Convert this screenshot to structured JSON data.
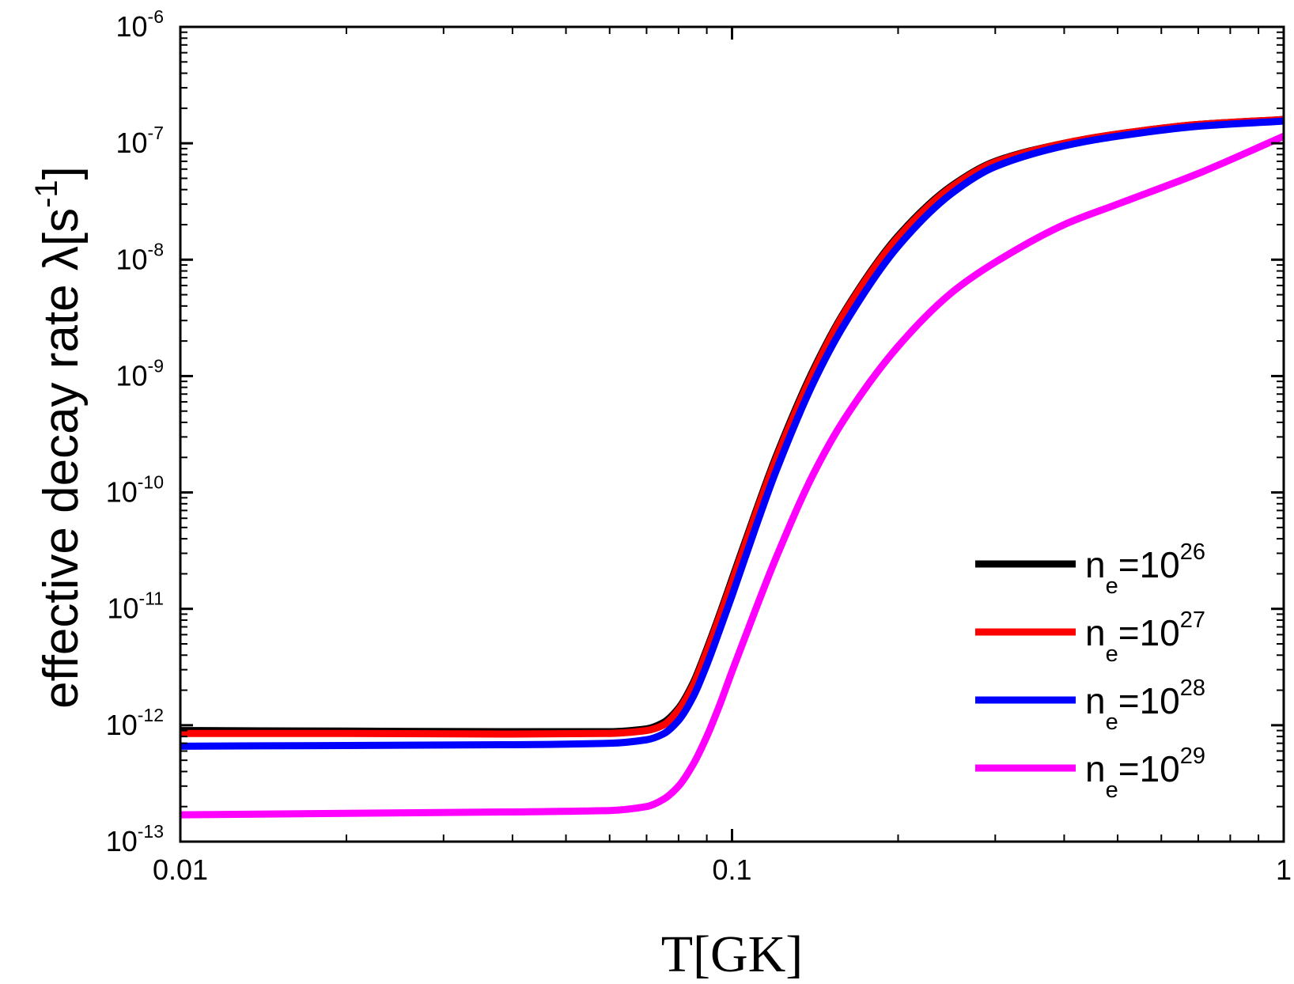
{
  "chart_data": {
    "type": "line",
    "title": "",
    "xlabel": "T[GK]",
    "ylabel": "effective decay rate λ[s⁻¹]",
    "ylabel_parts": {
      "main": "effective decay rate λ[s",
      "sup": "-1",
      "end": "]"
    },
    "x_scale": "log",
    "y_scale": "log",
    "xlim": [
      0.01,
      1
    ],
    "ylim": [
      1e-13,
      1e-06
    ],
    "x_ticks": [
      {
        "value": 0.01,
        "label": "0.01"
      },
      {
        "value": 0.1,
        "label": "0.1"
      },
      {
        "value": 1,
        "label": "1"
      }
    ],
    "y_ticks": [
      {
        "value": 1e-13,
        "base": "10",
        "exp": "-13"
      },
      {
        "value": 1e-12,
        "base": "10",
        "exp": "-12"
      },
      {
        "value": 1e-11,
        "base": "10",
        "exp": "-11"
      },
      {
        "value": 1e-10,
        "base": "10",
        "exp": "-10"
      },
      {
        "value": 1e-09,
        "base": "10",
        "exp": "-9"
      },
      {
        "value": 1e-08,
        "base": "10",
        "exp": "-8"
      },
      {
        "value": 1e-07,
        "base": "10",
        "exp": "-7"
      },
      {
        "value": 1e-06,
        "base": "10",
        "exp": "-6"
      }
    ],
    "grid": false,
    "legend_position": "bottom-right",
    "series": [
      {
        "name": "n_e=10^26",
        "legend": {
          "base": "n",
          "sub": "e",
          "mid": "=10",
          "sup": "26"
        },
        "color": "#000000",
        "x": [
          0.01,
          0.02,
          0.04,
          0.06,
          0.07,
          0.075,
          0.08,
          0.085,
          0.09,
          0.095,
          0.1,
          0.11,
          0.12,
          0.14,
          0.16,
          0.2,
          0.25,
          0.3,
          0.4,
          0.5,
          0.7,
          1.0
        ],
        "y": [
          9e-13,
          8.9e-13,
          8.8e-13,
          8.8e-13,
          9.3e-13,
          1.05e-12,
          1.4e-12,
          2.3e-12,
          4.5e-12,
          9e-12,
          1.8e-11,
          6.5e-11,
          2e-10,
          1.1e-09,
          3.6e-09,
          1.6e-08,
          4.3e-08,
          7e-08,
          1e-07,
          1.2e-07,
          1.45e-07,
          1.6e-07
        ]
      },
      {
        "name": "n_e=10^27",
        "legend": {
          "base": "n",
          "sub": "e",
          "mid": "=10",
          "sup": "27"
        },
        "color": "#ff0000",
        "x": [
          0.01,
          0.02,
          0.04,
          0.06,
          0.07,
          0.075,
          0.08,
          0.085,
          0.09,
          0.095,
          0.1,
          0.11,
          0.12,
          0.14,
          0.16,
          0.2,
          0.25,
          0.3,
          0.4,
          0.5,
          0.7,
          1.0
        ],
        "y": [
          8.5e-13,
          8.5e-13,
          8.4e-13,
          8.5e-13,
          9e-13,
          1e-12,
          1.35e-12,
          2.2e-12,
          4.3e-12,
          8.6e-12,
          1.7e-11,
          6.2e-11,
          1.9e-10,
          1.05e-09,
          3.5e-09,
          1.55e-08,
          4.2e-08,
          6.9e-08,
          1e-07,
          1.2e-07,
          1.45e-07,
          1.6e-07
        ]
      },
      {
        "name": "n_e=10^28",
        "legend": {
          "base": "n",
          "sub": "e",
          "mid": "=10",
          "sup": "28"
        },
        "color": "#0000ff",
        "x": [
          0.01,
          0.02,
          0.04,
          0.06,
          0.07,
          0.075,
          0.08,
          0.085,
          0.09,
          0.095,
          0.1,
          0.11,
          0.12,
          0.14,
          0.16,
          0.2,
          0.25,
          0.3,
          0.4,
          0.5,
          0.7,
          1.0
        ],
        "y": [
          6.6e-13,
          6.7e-13,
          6.8e-13,
          7e-13,
          7.5e-13,
          8.4e-13,
          1.1e-12,
          1.75e-12,
          3.3e-12,
          6.6e-12,
          1.3e-11,
          4.8e-11,
          1.5e-10,
          8.5e-10,
          2.8e-09,
          1.3e-08,
          3.7e-08,
          6.3e-08,
          9.5e-08,
          1.15e-07,
          1.4e-07,
          1.55e-07
        ]
      },
      {
        "name": "n_e=10^29",
        "legend": {
          "base": "n",
          "sub": "e",
          "mid": "=10",
          "sup": "29"
        },
        "color": "#ff00ff",
        "x": [
          0.01,
          0.02,
          0.04,
          0.06,
          0.07,
          0.075,
          0.08,
          0.085,
          0.09,
          0.095,
          0.1,
          0.11,
          0.12,
          0.14,
          0.16,
          0.2,
          0.25,
          0.3,
          0.4,
          0.5,
          0.7,
          1.0
        ],
        "y": [
          1.7e-13,
          1.75e-13,
          1.8e-13,
          1.85e-13,
          2e-13,
          2.3e-13,
          3e-13,
          4.6e-13,
          8e-13,
          1.5e-12,
          2.9e-12,
          9.5e-12,
          2.7e-11,
          1.4e-10,
          4.3e-10,
          1.8e-09,
          5.2e-09,
          9.5e-09,
          2e-08,
          3e-08,
          5.5e-08,
          1.15e-07
        ]
      }
    ]
  }
}
